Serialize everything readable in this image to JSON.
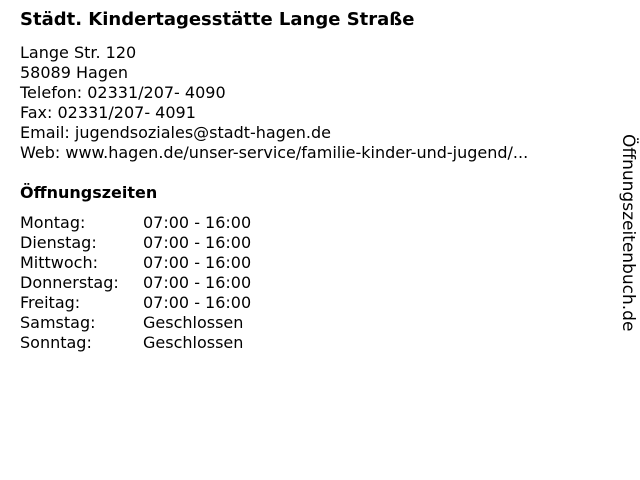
{
  "title": "Städt. Kindertagesstätte Lange Straße",
  "contact": {
    "street": "Lange Str. 120",
    "city": "58089 Hagen",
    "phone": "Telefon: 02331/207- 4090",
    "fax": "Fax: 02331/207- 4091",
    "email": "Email: jugendsoziales@stadt-hagen.de",
    "web": "Web: www.hagen.de/unser-service/familie-kinder-und-jugend/..."
  },
  "hours_title": "Öffnungszeiten",
  "hours": [
    {
      "day": "Montag:",
      "time": "07:00 - 16:00"
    },
    {
      "day": "Dienstag:",
      "time": "07:00 - 16:00"
    },
    {
      "day": "Mittwoch:",
      "time": "07:00 - 16:00"
    },
    {
      "day": "Donnerstag:",
      "time": "07:00 - 16:00"
    },
    {
      "day": "Freitag:",
      "time": "07:00 - 16:00"
    },
    {
      "day": "Samstag:",
      "time": "Geschlossen"
    },
    {
      "day": "Sonntag:",
      "time": "Geschlossen"
    }
  ],
  "brand": "Öffnungszeitenbuch.de"
}
